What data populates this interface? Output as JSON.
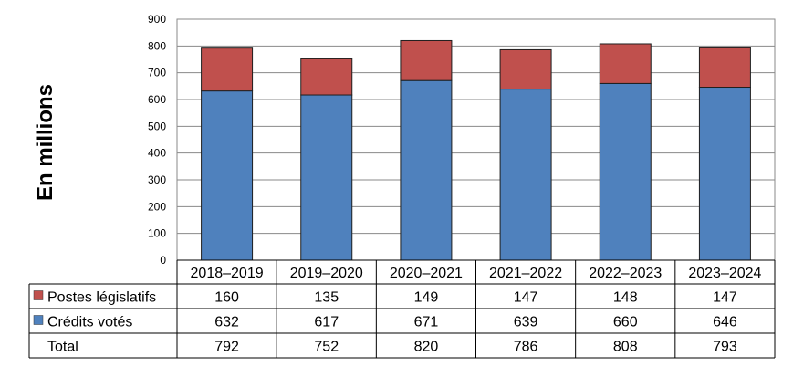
{
  "chart_data": {
    "type": "bar",
    "stacked": true,
    "ylabel": "En millions",
    "ylim": [
      0,
      900
    ],
    "yticks": [
      0,
      100,
      200,
      300,
      400,
      500,
      600,
      700,
      800,
      900
    ],
    "categories": [
      "2018–2019",
      "2019–2020",
      "2020–2021",
      "2021–2022",
      "2022–2023",
      "2023–2024"
    ],
    "series": [
      {
        "name": "Crédits votés",
        "color": "#4f81bd",
        "values": [
          632,
          617,
          671,
          639,
          660,
          646
        ]
      },
      {
        "name": "Postes législatifs",
        "color": "#c0504d",
        "values": [
          160,
          135,
          149,
          147,
          148,
          147
        ]
      }
    ],
    "table": {
      "rows": [
        {
          "label": "Postes législatifs",
          "series": 1,
          "values": [
            "160",
            "135",
            "149",
            "147",
            "148",
            "147"
          ]
        },
        {
          "label": "Crédits votés",
          "series": 0,
          "values": [
            "632",
            "617",
            "671",
            "639",
            "660",
            "646"
          ]
        },
        {
          "label": "Total",
          "series": null,
          "values": [
            "792",
            "752",
            "820",
            "786",
            "808",
            "793"
          ]
        }
      ]
    }
  }
}
